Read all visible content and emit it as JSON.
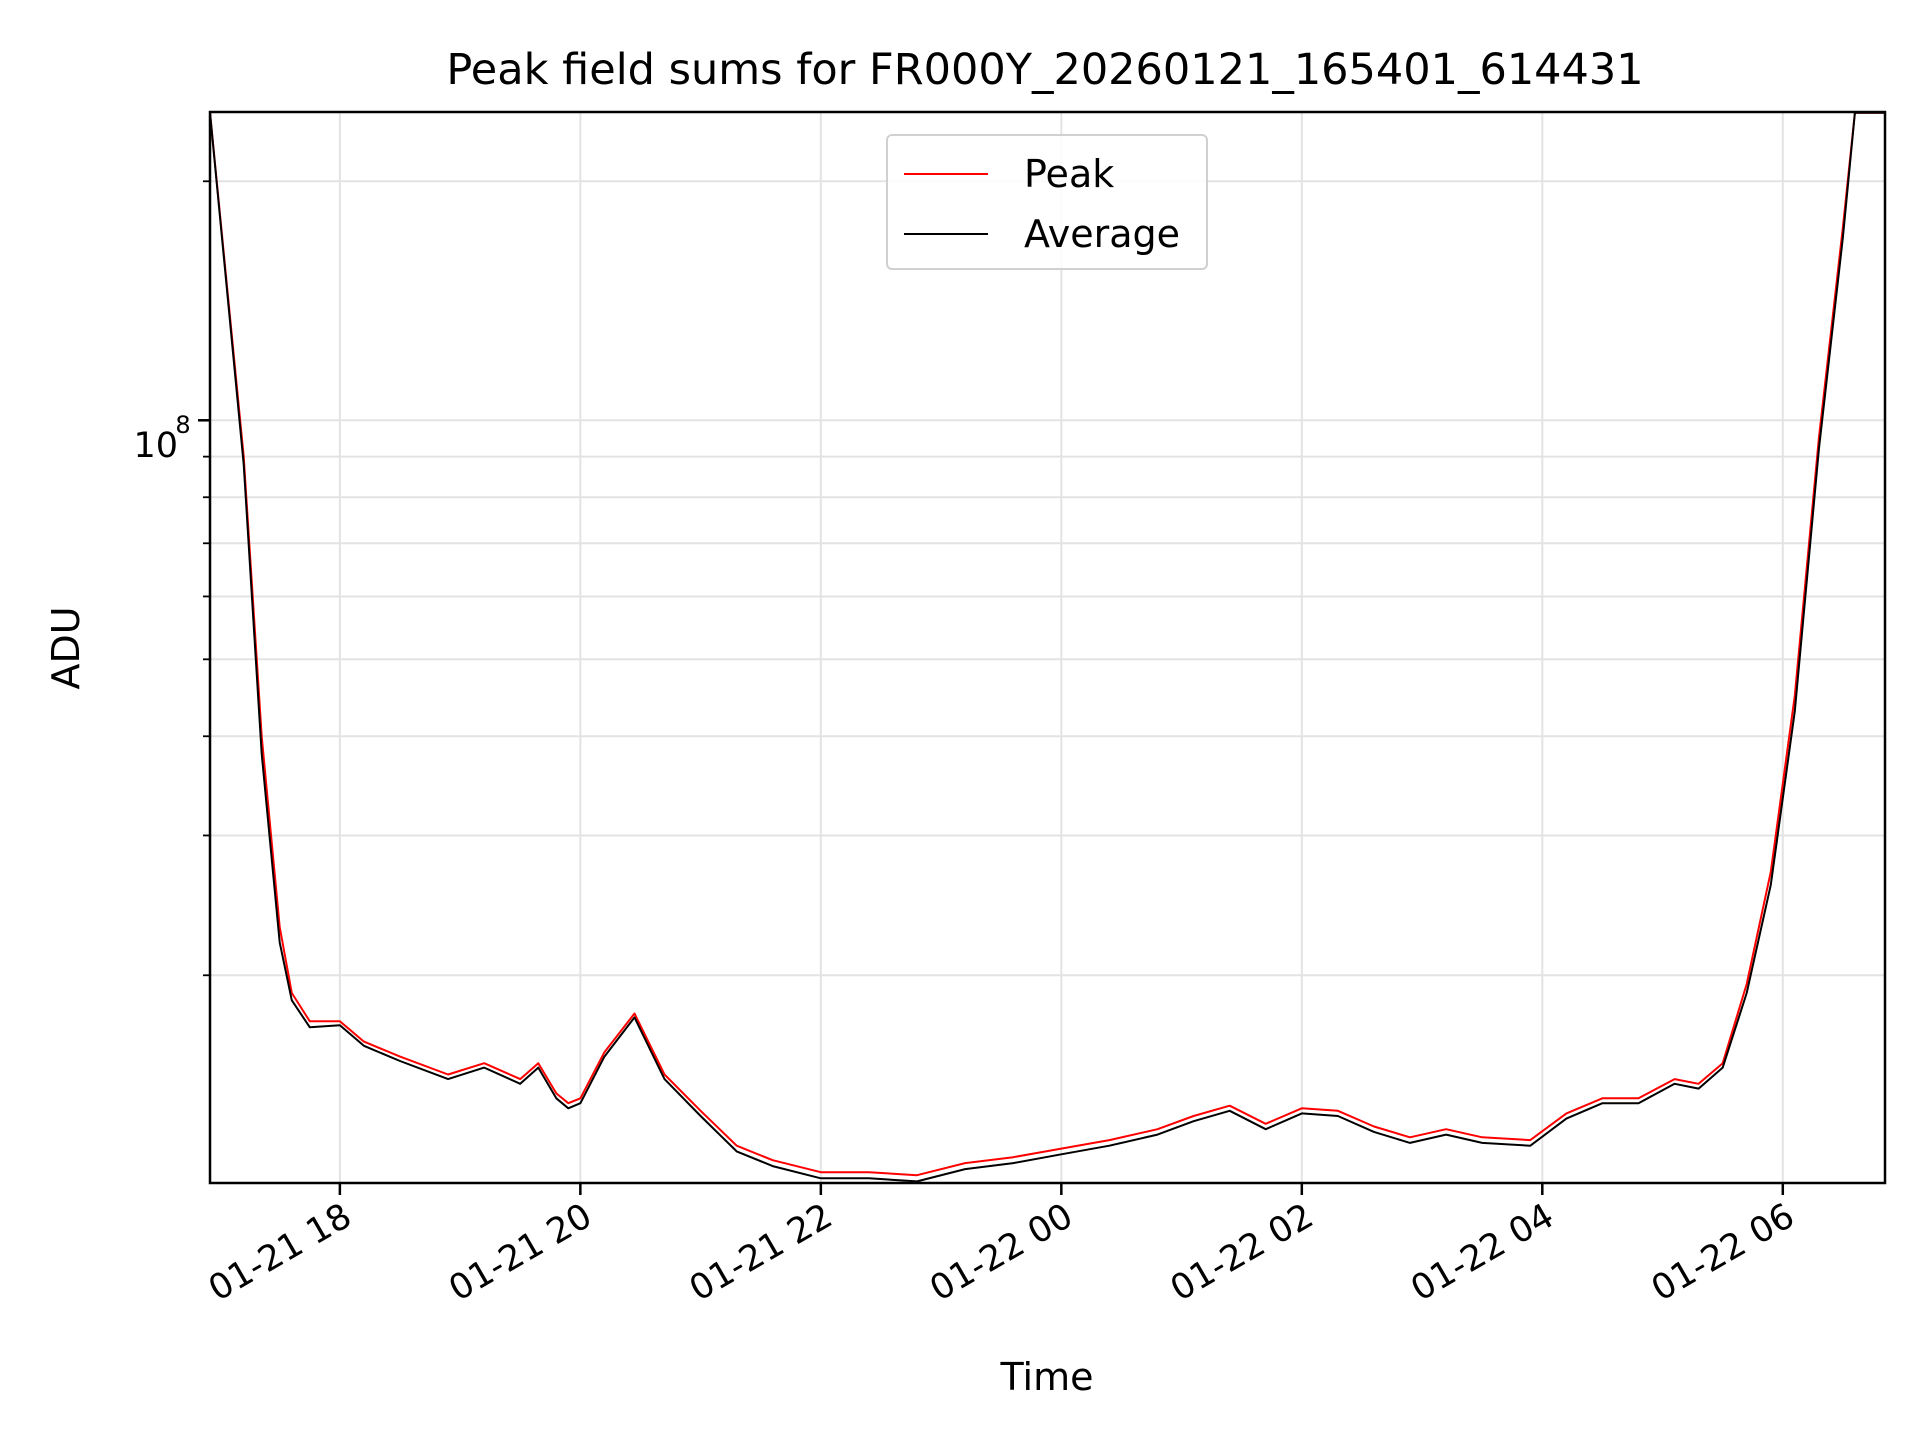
{
  "chart_data": {
    "type": "line",
    "title": "Peak field sums for FR000Y_20260121_165401_614431",
    "xlabel": "Time",
    "ylabel": "ADU",
    "yscale": "log",
    "y_tick_label_base": "10",
    "y_tick_label_exp": "8",
    "y_tick_value": 100000000,
    "x_ticks": [
      "01-21 18",
      "01-21 20",
      "01-21 22",
      "01-22 00",
      "01-22 02",
      "01-22 04",
      "01-22 06"
    ],
    "x_tick_hours": [
      18,
      20,
      22,
      24,
      26,
      28,
      30
    ],
    "xlim_hours": [
      16.92,
      30.85
    ],
    "ylim": [
      10950000,
      244500000
    ],
    "grid": true,
    "legend_position": "upper center",
    "colors": {
      "Peak": "#ff0000",
      "Average": "#000000"
    },
    "series": [
      {
        "name": "Peak",
        "x_hours": [
          16.92,
          17.2,
          17.35,
          17.5,
          17.6,
          17.75,
          18.0,
          18.2,
          18.5,
          18.9,
          19.2,
          19.5,
          19.65,
          19.8,
          19.9,
          20.0,
          20.2,
          20.45,
          20.7,
          21.0,
          21.3,
          21.6,
          22.0,
          22.4,
          22.8,
          23.2,
          23.6,
          24.0,
          24.4,
          24.8,
          25.1,
          25.4,
          25.7,
          26.0,
          26.3,
          26.6,
          26.9,
          27.2,
          27.5,
          27.9,
          28.2,
          28.5,
          28.8,
          29.1,
          29.3,
          29.5,
          29.7,
          29.9,
          30.1,
          30.3,
          30.5,
          30.6,
          30.85
        ],
        "values": [
          244000000,
          90000000,
          40000000,
          23000000,
          19000000,
          17500000,
          17500000,
          16500000,
          15800000,
          15000000,
          15500000,
          14800000,
          15500000,
          14200000,
          13800000,
          14000000,
          16000000,
          17900000,
          15000000,
          13500000,
          12200000,
          11700000,
          11300000,
          11300000,
          11200000,
          11600000,
          11800000,
          12100000,
          12400000,
          12800000,
          13300000,
          13700000,
          13000000,
          13600000,
          13500000,
          12900000,
          12500000,
          12800000,
          12500000,
          12400000,
          13400000,
          14000000,
          14000000,
          14800000,
          14600000,
          15500000,
          19500000,
          27000000,
          45000000,
          95000000,
          175000000,
          244000000,
          244000000
        ]
      },
      {
        "name": "Average",
        "x_hours": [
          16.92,
          17.2,
          17.35,
          17.5,
          17.6,
          17.75,
          18.0,
          18.2,
          18.5,
          18.9,
          19.2,
          19.5,
          19.65,
          19.8,
          19.9,
          20.0,
          20.2,
          20.45,
          20.7,
          21.0,
          21.3,
          21.6,
          22.0,
          22.4,
          22.8,
          23.2,
          23.6,
          24.0,
          24.4,
          24.8,
          25.1,
          25.4,
          25.7,
          26.0,
          26.3,
          26.6,
          26.9,
          27.2,
          27.5,
          27.9,
          28.2,
          28.5,
          28.8,
          29.1,
          29.3,
          29.5,
          29.7,
          29.9,
          30.1,
          30.3,
          30.5,
          30.6,
          30.85
        ],
        "values": [
          244000000,
          88000000,
          38000000,
          22000000,
          18600000,
          17200000,
          17300000,
          16300000,
          15600000,
          14800000,
          15300000,
          14600000,
          15300000,
          14000000,
          13600000,
          13800000,
          15800000,
          17700000,
          14800000,
          13300000,
          12000000,
          11500000,
          11100000,
          11100000,
          11000000,
          11400000,
          11600000,
          11900000,
          12200000,
          12600000,
          13100000,
          13500000,
          12800000,
          13400000,
          13300000,
          12700000,
          12300000,
          12600000,
          12300000,
          12200000,
          13200000,
          13800000,
          13800000,
          14600000,
          14400000,
          15300000,
          19000000,
          26000000,
          43000000,
          92000000,
          170000000,
          244000000,
          244000000
        ]
      }
    ]
  }
}
